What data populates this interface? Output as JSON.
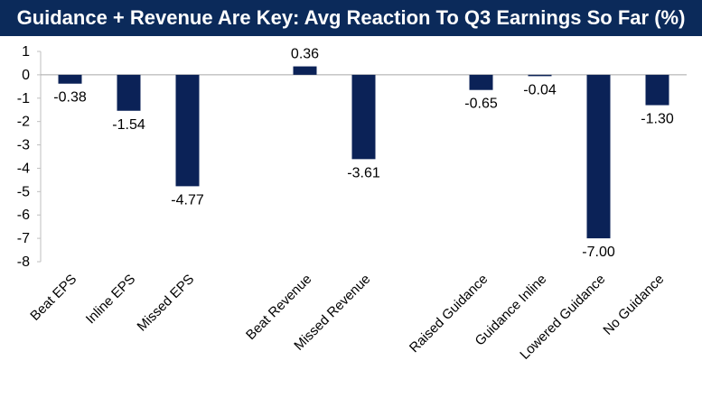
{
  "title": "Guidance + Revenue Are Key: Avg Reaction To Q3 Earnings So Far (%)",
  "colors": {
    "title_bg": "#0b2a5a",
    "bar": "#0b2257",
    "axis": "#bfbfbf",
    "zero_line": "#a6a6a6"
  },
  "chart_data": {
    "type": "bar",
    "title": "Guidance + Revenue Are Key: Avg Reaction To Q3 Earnings So Far (%)",
    "xlabel": "",
    "ylabel": "",
    "ylim": [
      -8,
      1
    ],
    "yticks": [
      1,
      0,
      -1,
      -2,
      -3,
      -4,
      -5,
      -6,
      -7,
      -8
    ],
    "grid": false,
    "legend": "none",
    "categories": [
      "Beat EPS",
      "Inline EPS",
      "Missed EPS",
      "",
      "Beat Revenue",
      "Missed Revenue",
      "",
      "Raised Guidance",
      "Guidance Inline",
      "Lowered Guidance",
      "No Guidance"
    ],
    "values": [
      -0.38,
      -1.54,
      -4.77,
      null,
      0.36,
      -3.61,
      null,
      -0.65,
      -0.04,
      -7.0,
      -1.3
    ],
    "value_labels": [
      "-0.38",
      "-1.54",
      "-4.77",
      "",
      "0.36",
      "-3.61",
      "",
      "-0.65",
      "-0.04",
      "-7.00",
      "-1.30"
    ]
  }
}
